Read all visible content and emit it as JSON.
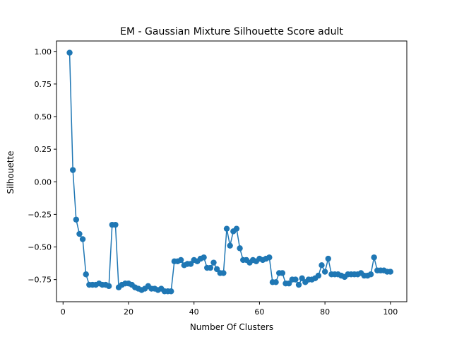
{
  "chart_data": {
    "type": "line",
    "title": "EM - Gaussian Mixture Silhouette Score adult",
    "xlabel": "Number Of Clusters",
    "ylabel": "Silhouette",
    "xlim": [
      -2,
      105
    ],
    "ylim": [
      -0.92,
      1.08
    ],
    "x_ticks": [
      0,
      20,
      40,
      60,
      80,
      100
    ],
    "x_tick_labels": [
      "0",
      "20",
      "40",
      "60",
      "80",
      "100"
    ],
    "y_ticks": [
      1.0,
      0.75,
      0.5,
      0.25,
      0.0,
      -0.25,
      -0.5,
      -0.75
    ],
    "y_tick_labels": [
      "1.00",
      "0.75",
      "0.50",
      "0.25",
      "0.00",
      "−0.25",
      "−0.50",
      "−0.75"
    ],
    "grid": false,
    "color": "#1f77b4",
    "marker": "circle",
    "series": [
      {
        "x": [
          2,
          3,
          4,
          5,
          6,
          7,
          8,
          9,
          10,
          11,
          12,
          13,
          14,
          15,
          16,
          17,
          18,
          19,
          20,
          21,
          22,
          23,
          24,
          25,
          26,
          27,
          28,
          29,
          30,
          31,
          32,
          33,
          34,
          35,
          36,
          37,
          38,
          39,
          40,
          41,
          42,
          43,
          44,
          45,
          46,
          47,
          48,
          49,
          50,
          51,
          52,
          53,
          54,
          55,
          56,
          57,
          58,
          59,
          60,
          61,
          62,
          63,
          64,
          65,
          66,
          67,
          68,
          69,
          70,
          71,
          72,
          73,
          74,
          75,
          76,
          77,
          78,
          79,
          80,
          81,
          82,
          83,
          84,
          85,
          86,
          87,
          88,
          89,
          90,
          91,
          92,
          93,
          94,
          95,
          96,
          97,
          98,
          99,
          100
        ],
        "values": [
          0.99,
          0.09,
          -0.29,
          -0.4,
          -0.44,
          -0.71,
          -0.79,
          -0.79,
          -0.79,
          -0.78,
          -0.79,
          -0.79,
          -0.8,
          -0.33,
          -0.33,
          -0.81,
          -0.79,
          -0.78,
          -0.78,
          -0.79,
          -0.81,
          -0.82,
          -0.83,
          -0.82,
          -0.8,
          -0.82,
          -0.82,
          -0.83,
          -0.82,
          -0.84,
          -0.84,
          -0.84,
          -0.61,
          -0.61,
          -0.6,
          -0.64,
          -0.63,
          -0.63,
          -0.6,
          -0.61,
          -0.59,
          -0.58,
          -0.66,
          -0.66,
          -0.62,
          -0.67,
          -0.7,
          -0.7,
          -0.36,
          -0.49,
          -0.38,
          -0.36,
          -0.51,
          -0.6,
          -0.6,
          -0.62,
          -0.6,
          -0.61,
          -0.59,
          -0.6,
          -0.59,
          -0.58,
          -0.77,
          -0.77,
          -0.7,
          -0.7,
          -0.78,
          -0.78,
          -0.75,
          -0.75,
          -0.79,
          -0.74,
          -0.77,
          -0.75,
          -0.75,
          -0.74,
          -0.72,
          -0.64,
          -0.69,
          -0.59,
          -0.71,
          -0.71,
          -0.71,
          -0.72,
          -0.73,
          -0.71,
          -0.71,
          -0.71,
          -0.71,
          -0.7,
          -0.72,
          -0.72,
          -0.71,
          -0.58,
          -0.68,
          -0.68,
          -0.68,
          -0.69,
          -0.69
        ]
      }
    ]
  }
}
